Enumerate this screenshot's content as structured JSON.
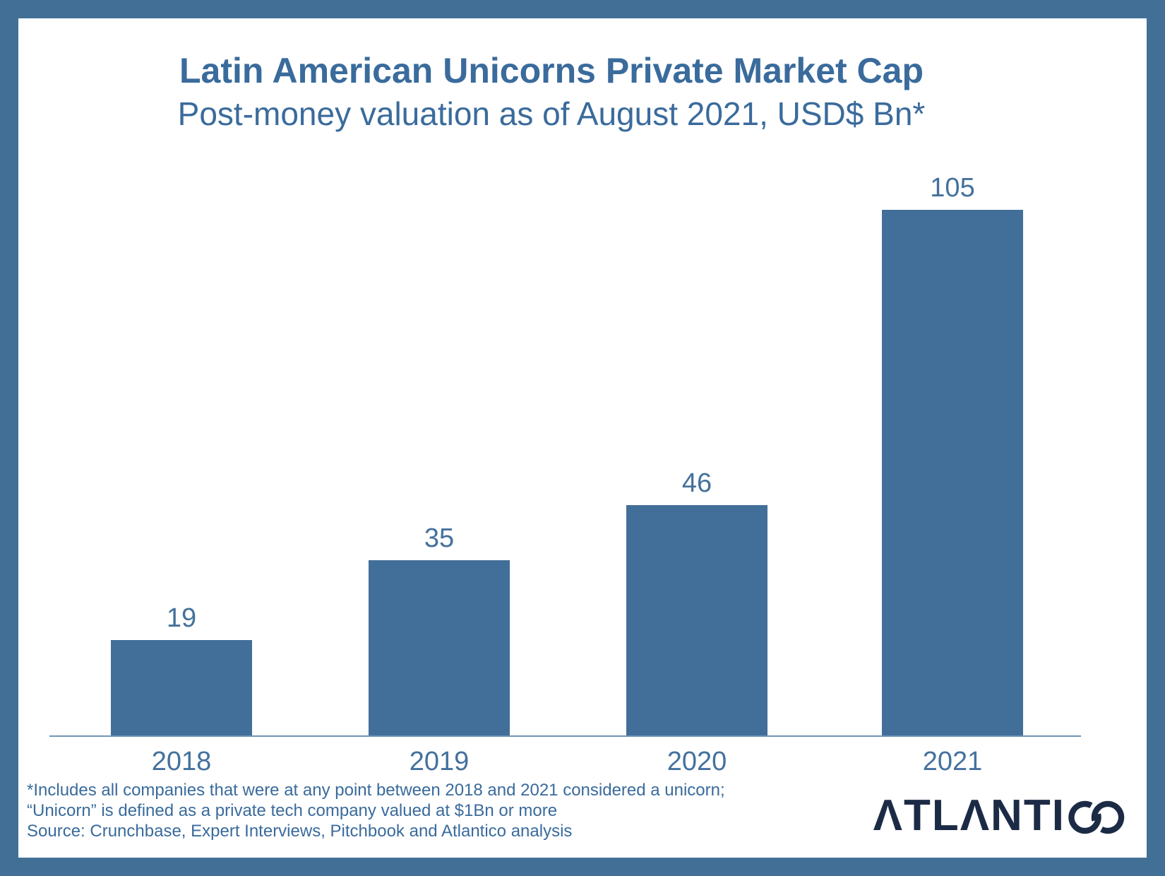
{
  "chart_data": {
    "type": "bar",
    "title": "Latin American Unicorns Private Market Cap",
    "subtitle": "Post-money valuation as of August 2021, USD$ Bn*",
    "categories": [
      "2018",
      "2019",
      "2020",
      "2021"
    ],
    "values": [
      19,
      35,
      46,
      105
    ],
    "xlabel": "",
    "ylabel": "",
    "ylim": [
      0,
      105
    ],
    "grid": false,
    "legend": false,
    "data_labels": true,
    "orientation": "vertical"
  },
  "footnotes": {
    "lines": [
      "*Includes all companies that were at any point between 2018 and 2021 considered a unicorn;",
      "“Unicorn” is defined as a private tech company valued at $1Bn or more",
      "Source: Crunchbase, Expert Interviews, Pitchbook and Atlantico analysis"
    ]
  },
  "branding": {
    "logo_text": "ATLANTICO"
  },
  "colors": {
    "frame": "#426f96",
    "bar": "#426f99",
    "title_text": "#3a6b9c",
    "label_text": "#44719c",
    "footnote_text": "#3a6b9c",
    "axis_line": "#7094b5",
    "logo": "#1c2b45"
  }
}
